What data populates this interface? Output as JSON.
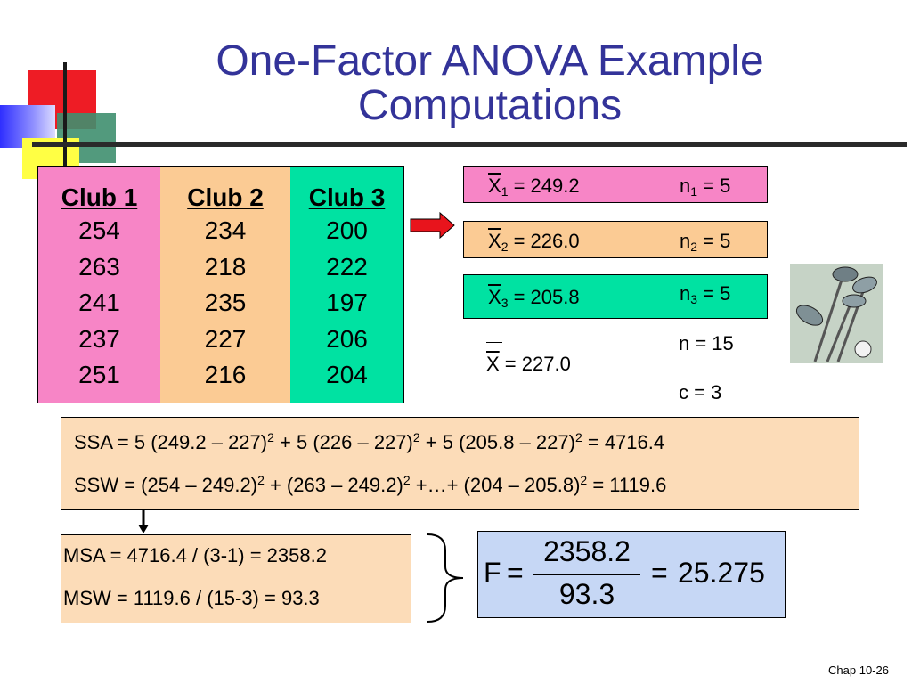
{
  "title": {
    "line1": "One-Factor ANOVA Example",
    "line2": "Computations"
  },
  "clubs": [
    {
      "name": "Club 1",
      "values": [
        "254",
        "263",
        "241",
        "237",
        "251"
      ],
      "color": "#f785c6"
    },
    {
      "name": "Club 2",
      "values": [
        "234",
        "218",
        "235",
        "227",
        "216"
      ],
      "color": "#fbcb94"
    },
    {
      "name": "Club 3",
      "values": [
        "200",
        "222",
        "197",
        "206",
        "204"
      ],
      "color": "#00e2a2"
    }
  ],
  "means": [
    {
      "symbol": "X",
      "sub": "1",
      "value": " = 249.2",
      "n_symbol": "n",
      "n_sub": "1",
      "n_value": " = 5",
      "color": "#f785c6"
    },
    {
      "symbol": "X",
      "sub": "2",
      "value": " = 226.0",
      "n_symbol": "n",
      "n_sub": "2",
      "n_value": " = 5",
      "color": "#fbcb94"
    },
    {
      "symbol": "X",
      "sub": "3",
      "value": " = 205.8",
      "n_symbol": "n",
      "n_sub": "3",
      "n_value": " = 5",
      "color": "#00e2a2"
    }
  ],
  "grand_mean": {
    "symbol": "X",
    "value": " = 227.0"
  },
  "n_total": "n = 15",
  "c_groups": "c = 3",
  "ssa": {
    "p1": "SSA =  5 (249.2 – 227)",
    "p2": " + 5 (226 – 227)",
    "p3": " + 5 (205.8 – 227)",
    "p4": "  = 4716.4",
    "exp": "2"
  },
  "ssw": {
    "p1": "SSW =  (254 – 249.2)",
    "p2": " + (263 – 249.2)",
    "p3": " +…+ (204 – 205.8)",
    "p4": " = 1119.6",
    "exp": "2"
  },
  "msa": "MSA = 4716.4 / (3-1) = 2358.2",
  "msw": "MSW = 1119.6 / (15-3) = 93.3",
  "f_stat": {
    "symbol": "F",
    "eq": "=",
    "numerator": "2358.2",
    "denominator": "93.3",
    "result": "25.275"
  },
  "footer": "Chap 10-26",
  "colors": {
    "title": "#333399",
    "peach": "#fcdcb8",
    "light_blue": "#c6d7f5",
    "arrow_red": "#e8141c"
  }
}
